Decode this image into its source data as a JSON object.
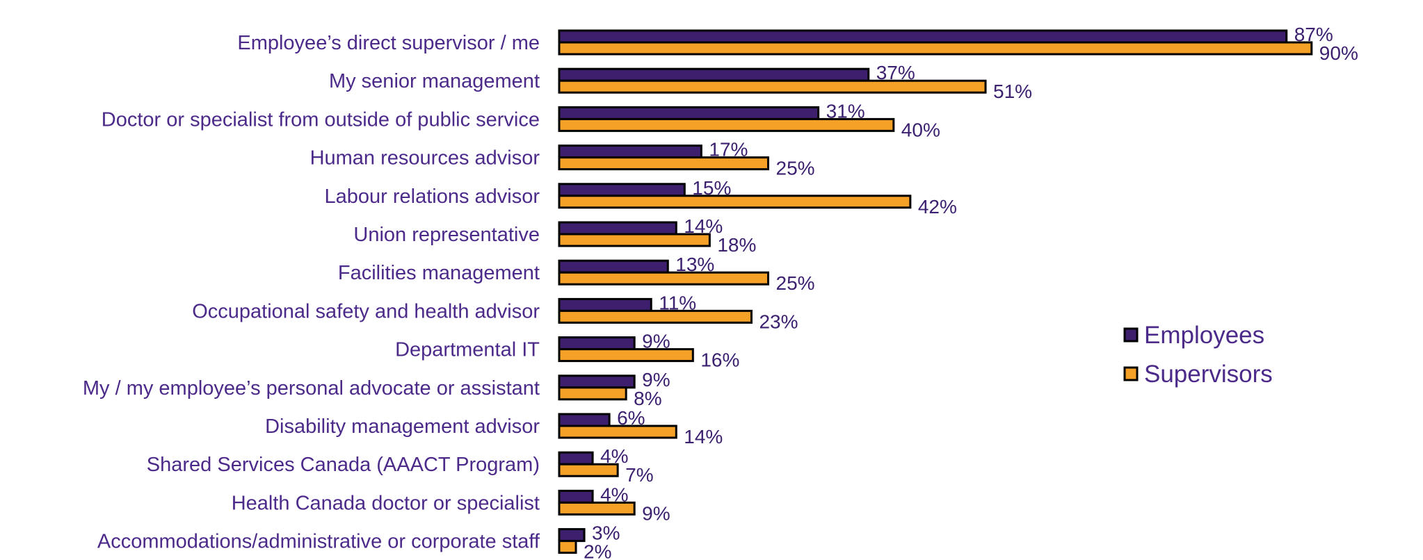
{
  "chart_data": {
    "type": "bar",
    "orientation": "horizontal",
    "categories": [
      "Employee’s direct supervisor / me",
      "My senior management",
      "Doctor or specialist from outside of public service",
      "Human resources advisor",
      "Labour relations advisor",
      "Union representative",
      "Facilities management",
      "Occupational safety and health advisor",
      "Departmental IT",
      "My / my employee’s personal advocate or assistant",
      "Disability management advisor",
      "Shared Services Canada (AAACT Program)",
      "Health Canada doctor or specialist",
      "Accommodations/administrative or corporate staff"
    ],
    "series": [
      {
        "name": "Employees",
        "color": "#3d1f6e",
        "values": [
          87,
          37,
          31,
          17,
          15,
          14,
          13,
          11,
          9,
          9,
          6,
          4,
          4,
          3
        ],
        "labels": [
          "87%",
          "37%",
          "31%",
          "17%",
          "15%",
          "14%",
          "13%",
          "11%",
          "9%",
          "9%",
          "6%",
          "4%",
          "4%",
          "3%"
        ]
      },
      {
        "name": "Supervisors",
        "color": "#f5a128",
        "values": [
          90,
          51,
          40,
          25,
          42,
          18,
          25,
          23,
          16,
          8,
          14,
          7,
          9,
          2
        ],
        "labels": [
          "90%",
          "51%",
          "40%",
          "25%",
          "42%",
          "18%",
          "25%",
          "23%",
          "16%",
          "8%",
          "14%",
          "7%",
          "9%",
          "2%"
        ]
      }
    ],
    "xlim": [
      0,
      100
    ],
    "value_suffix": "%",
    "grid": false,
    "legend_position": "right"
  }
}
